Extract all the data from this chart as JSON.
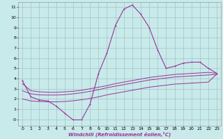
{
  "xlabel": "Windchill (Refroidissement éolien,°C)",
  "bg_color": "#c8eaea",
  "line_color": "#993399",
  "grid_color": "#99bbbb",
  "hours": [
    0,
    1,
    2,
    3,
    4,
    5,
    6,
    7,
    8,
    9,
    10,
    11,
    12,
    13,
    14,
    15,
    16,
    17,
    18,
    19,
    20,
    21,
    22,
    23
  ],
  "main_line": [
    3.8,
    2.2,
    1.9,
    1.8,
    1.3,
    0.6,
    -0.05,
    -0.05,
    1.5,
    4.5,
    6.5,
    9.2,
    10.8,
    11.2,
    10.3,
    9.0,
    6.8,
    5.0,
    5.2,
    5.5,
    5.6,
    5.6,
    5.0,
    4.5
  ],
  "smooth_line1": [
    3.5,
    2.8,
    2.7,
    2.65,
    2.65,
    2.7,
    2.75,
    2.85,
    3.0,
    3.15,
    3.3,
    3.5,
    3.65,
    3.8,
    3.95,
    4.1,
    4.2,
    4.3,
    4.4,
    4.45,
    4.5,
    4.55,
    4.6,
    4.5
  ],
  "smooth_line2": [
    2.8,
    2.5,
    2.4,
    2.38,
    2.38,
    2.42,
    2.5,
    2.6,
    2.75,
    2.9,
    3.1,
    3.25,
    3.4,
    3.55,
    3.7,
    3.85,
    3.95,
    4.05,
    4.15,
    4.2,
    4.25,
    4.3,
    4.35,
    4.4
  ],
  "smooth_line3": [
    2.0,
    1.8,
    1.75,
    1.72,
    1.72,
    1.75,
    1.82,
    1.92,
    2.05,
    2.2,
    2.4,
    2.55,
    2.7,
    2.85,
    3.0,
    3.15,
    3.25,
    3.35,
    3.45,
    3.5,
    3.55,
    3.6,
    3.65,
    4.45
  ],
  "xlim_min": -0.5,
  "xlim_max": 23.5,
  "ylim_min": -0.6,
  "ylim_max": 11.5,
  "yticks": [
    0,
    1,
    2,
    3,
    4,
    5,
    6,
    7,
    8,
    9,
    10,
    11
  ],
  "xticks": [
    0,
    1,
    2,
    3,
    4,
    5,
    6,
    7,
    8,
    9,
    10,
    11,
    12,
    13,
    14,
    15,
    16,
    17,
    18,
    19,
    20,
    21,
    22,
    23
  ],
  "xlabel_color": "#993399",
  "xlabel_fontsize": 5.0,
  "tick_fontsize": 4.5,
  "lw_main": 0.8,
  "lw_smooth": 0.7,
  "marker_size": 2.0
}
